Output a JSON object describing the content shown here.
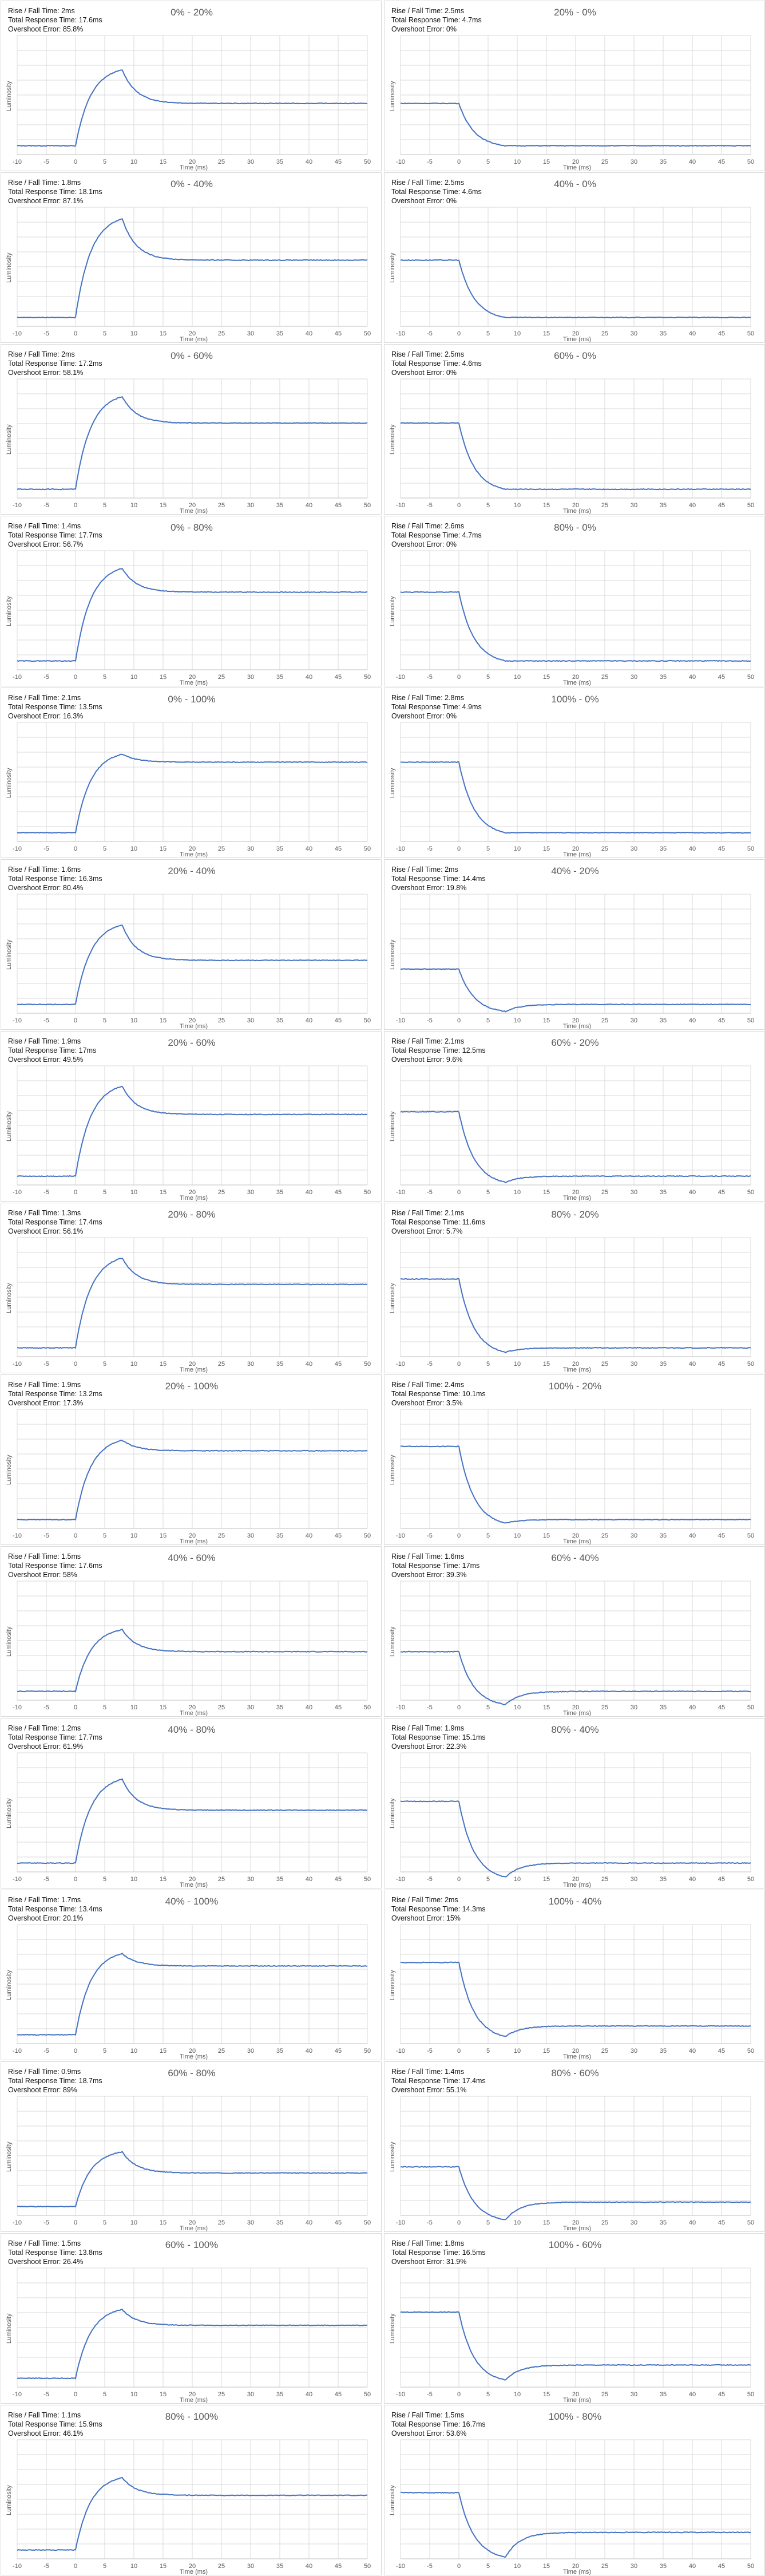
{
  "colors": {
    "line": "#4472c4",
    "grid": "#d9d9d9",
    "axis": "#bfbfbf",
    "text": "#595959"
  },
  "labels": {
    "rise": "Rise / Fall Time: ",
    "total": "Total Response Time: ",
    "overshoot": "Overshoot Error: "
  },
  "chart_data": [
    {
      "type": "line",
      "title": "0% - 20%",
      "start": 0.1,
      "end": 0.58,
      "peak": 0.96,
      "rise": "2ms",
      "total": "17.6ms",
      "overshoot": "85.8%",
      "xlabel": "Time (ms)",
      "ylabel": "Luminosity",
      "xlim": [
        -10,
        50
      ],
      "xticks": [
        -10,
        -5,
        0,
        5,
        10,
        15,
        20,
        25,
        30,
        35,
        40,
        45,
        50
      ]
    },
    {
      "type": "line",
      "title": "20% - 0%",
      "start": 0.58,
      "end": 0.1,
      "peak": 0.1,
      "rise": "2.5ms",
      "total": "4.7ms",
      "overshoot": "0%",
      "xlabel": "Time (ms)",
      "ylabel": "Luminosity",
      "xlim": [
        -10,
        50
      ],
      "xticks": [
        -10,
        -5,
        0,
        5,
        10,
        15,
        20,
        25,
        30,
        35,
        40,
        45,
        50
      ]
    },
    {
      "type": "line",
      "title": "0% - 40%",
      "start": 0.1,
      "end": 0.75,
      "peak": 1.22,
      "rise": "1.8ms",
      "total": "18.1ms",
      "overshoot": "87.1%",
      "xlabel": "Time (ms)",
      "ylabel": "Luminosity",
      "xlim": [
        -10,
        50
      ],
      "xticks": [
        -10,
        -5,
        0,
        5,
        10,
        15,
        20,
        25,
        30,
        35,
        40,
        45,
        50
      ]
    },
    {
      "type": "line",
      "title": "40% - 0%",
      "start": 0.75,
      "end": 0.1,
      "peak": 0.1,
      "rise": "2.5ms",
      "total": "4.6ms",
      "overshoot": "0%",
      "xlabel": "Time (ms)",
      "ylabel": "Luminosity",
      "xlim": [
        -10,
        50
      ],
      "xticks": [
        -10,
        -5,
        0,
        5,
        10,
        15,
        20,
        25,
        30,
        35,
        40,
        45,
        50
      ]
    },
    {
      "type": "line",
      "title": "0% - 60%",
      "start": 0.1,
      "end": 0.85,
      "peak": 1.15,
      "rise": "2ms",
      "total": "17.2ms",
      "overshoot": "58.1%",
      "xlabel": "Time (ms)",
      "ylabel": "Luminosity",
      "xlim": [
        -10,
        50
      ],
      "xticks": [
        -10,
        -5,
        0,
        5,
        10,
        15,
        20,
        25,
        30,
        35,
        40,
        45,
        50
      ]
    },
    {
      "type": "line",
      "title": "60% - 0%",
      "start": 0.85,
      "end": 0.1,
      "peak": 0.1,
      "rise": "2.5ms",
      "total": "4.6ms",
      "overshoot": "0%",
      "xlabel": "Time (ms)",
      "ylabel": "Luminosity",
      "xlim": [
        -10,
        50
      ],
      "xticks": [
        -10,
        -5,
        0,
        5,
        10,
        15,
        20,
        25,
        30,
        35,
        40,
        45,
        50
      ]
    },
    {
      "type": "line",
      "title": "0% - 80%",
      "start": 0.1,
      "end": 0.88,
      "peak": 1.15,
      "rise": "1.4ms",
      "total": "17.7ms",
      "overshoot": "56.7%",
      "xlabel": "Time (ms)",
      "ylabel": "Luminosity",
      "xlim": [
        -10,
        50
      ],
      "xticks": [
        -10,
        -5,
        0,
        5,
        10,
        15,
        20,
        25,
        30,
        35,
        40,
        45,
        50
      ]
    },
    {
      "type": "line",
      "title": "80% - 0%",
      "start": 0.88,
      "end": 0.1,
      "peak": 0.1,
      "rise": "2.6ms",
      "total": "4.7ms",
      "overshoot": "0%",
      "xlabel": "Time (ms)",
      "ylabel": "Luminosity",
      "xlim": [
        -10,
        50
      ],
      "xticks": [
        -10,
        -5,
        0,
        5,
        10,
        15,
        20,
        25,
        30,
        35,
        40,
        45,
        50
      ]
    },
    {
      "type": "line",
      "title": "0% - 100%",
      "start": 0.1,
      "end": 0.9,
      "peak": 0.99,
      "rise": "2.1ms",
      "total": "13.5ms",
      "overshoot": "16.3%",
      "xlabel": "Time (ms)",
      "ylabel": "Luminosity",
      "xlim": [
        -10,
        50
      ],
      "xticks": [
        -10,
        -5,
        0,
        5,
        10,
        15,
        20,
        25,
        30,
        35,
        40,
        45,
        50
      ]
    },
    {
      "type": "line",
      "title": "100% - 0%",
      "start": 0.9,
      "end": 0.1,
      "peak": 0.1,
      "rise": "2.8ms",
      "total": "4.9ms",
      "overshoot": "0%",
      "xlabel": "Time (ms)",
      "ylabel": "Luminosity",
      "xlim": [
        -10,
        50
      ],
      "xticks": [
        -10,
        -5,
        0,
        5,
        10,
        15,
        20,
        25,
        30,
        35,
        40,
        45,
        50
      ]
    },
    {
      "type": "line",
      "title": "20% - 40%",
      "start": 0.1,
      "end": 0.6,
      "peak": 1.0,
      "rise": "1.6ms",
      "total": "16.3ms",
      "overshoot": "80.4%",
      "xlabel": "Time (ms)",
      "ylabel": "Luminosity",
      "xlim": [
        -10,
        50
      ],
      "xticks": [
        -10,
        -5,
        0,
        5,
        10,
        15,
        20,
        25,
        30,
        35,
        40,
        45,
        50
      ]
    },
    {
      "type": "line",
      "title": "40% - 20%",
      "start": 0.5,
      "end": 0.1,
      "peak": 0.02,
      "rise": "2ms",
      "total": "14.4ms",
      "overshoot": "19.8%",
      "xlabel": "Time (ms)",
      "ylabel": "Luminosity",
      "xlim": [
        -10,
        50
      ],
      "xticks": [
        -10,
        -5,
        0,
        5,
        10,
        15,
        20,
        25,
        30,
        35,
        40,
        45,
        50
      ]
    },
    {
      "type": "line",
      "title": "20% - 60%",
      "start": 0.1,
      "end": 0.8,
      "peak": 1.12,
      "rise": "1.9ms",
      "total": "17ms",
      "overshoot": "49.5%",
      "xlabel": "Time (ms)",
      "ylabel": "Luminosity",
      "xlim": [
        -10,
        50
      ],
      "xticks": [
        -10,
        -5,
        0,
        5,
        10,
        15,
        20,
        25,
        30,
        35,
        40,
        45,
        50
      ]
    },
    {
      "type": "line",
      "title": "60% - 20%",
      "start": 0.83,
      "end": 0.1,
      "peak": 0.03,
      "rise": "2.1ms",
      "total": "12.5ms",
      "overshoot": "9.6%",
      "xlabel": "Time (ms)",
      "ylabel": "Luminosity",
      "xlim": [
        -10,
        50
      ],
      "xticks": [
        -10,
        -5,
        0,
        5,
        10,
        15,
        20,
        25,
        30,
        35,
        40,
        45,
        50
      ]
    },
    {
      "type": "line",
      "title": "20% - 80%",
      "start": 0.1,
      "end": 0.82,
      "peak": 1.12,
      "rise": "1.3ms",
      "total": "17.4ms",
      "overshoot": "56.1%",
      "xlabel": "Time (ms)",
      "ylabel": "Luminosity",
      "xlim": [
        -10,
        50
      ],
      "xticks": [
        -10,
        -5,
        0,
        5,
        10,
        15,
        20,
        25,
        30,
        35,
        40,
        45,
        50
      ]
    },
    {
      "type": "line",
      "title": "80% - 20%",
      "start": 0.88,
      "end": 0.1,
      "peak": 0.05,
      "rise": "2.1ms",
      "total": "11.6ms",
      "overshoot": "5.7%",
      "xlabel": "Time (ms)",
      "ylabel": "Luminosity",
      "xlim": [
        -10,
        50
      ],
      "xticks": [
        -10,
        -5,
        0,
        5,
        10,
        15,
        20,
        25,
        30,
        35,
        40,
        45,
        50
      ]
    },
    {
      "type": "line",
      "title": "20% - 100%",
      "start": 0.1,
      "end": 0.88,
      "peak": 1.0,
      "rise": "1.9ms",
      "total": "13.2ms",
      "overshoot": "17.3%",
      "xlabel": "Time (ms)",
      "ylabel": "Luminosity",
      "xlim": [
        -10,
        50
      ],
      "xticks": [
        -10,
        -5,
        0,
        5,
        10,
        15,
        20,
        25,
        30,
        35,
        40,
        45,
        50
      ]
    },
    {
      "type": "line",
      "title": "100% - 20%",
      "start": 0.93,
      "end": 0.1,
      "peak": 0.06,
      "rise": "2.4ms",
      "total": "10.1ms",
      "overshoot": "3.5%",
      "xlabel": "Time (ms)",
      "ylabel": "Luminosity",
      "xlim": [
        -10,
        50
      ],
      "xticks": [
        -10,
        -5,
        0,
        5,
        10,
        15,
        20,
        25,
        30,
        35,
        40,
        45,
        50
      ]
    },
    {
      "type": "line",
      "title": "40% - 60%",
      "start": 0.1,
      "end": 0.55,
      "peak": 0.8,
      "rise": "1.5ms",
      "total": "17.6ms",
      "overshoot": "58%",
      "xlabel": "Time (ms)",
      "ylabel": "Luminosity",
      "xlim": [
        -10,
        50
      ],
      "xticks": [
        -10,
        -5,
        0,
        5,
        10,
        15,
        20,
        25,
        30,
        35,
        40,
        45,
        50
      ]
    },
    {
      "type": "line",
      "title": "60% - 40%",
      "start": 0.55,
      "end": 0.1,
      "peak": -0.05,
      "rise": "1.6ms",
      "total": "17ms",
      "overshoot": "39.3%",
      "xlabel": "Time (ms)",
      "ylabel": "Luminosity",
      "xlim": [
        -10,
        50
      ],
      "xticks": [
        -10,
        -5,
        0,
        5,
        10,
        15,
        20,
        25,
        30,
        35,
        40,
        45,
        50
      ]
    },
    {
      "type": "line",
      "title": "40% - 80%",
      "start": 0.1,
      "end": 0.7,
      "peak": 1.05,
      "rise": "1.2ms",
      "total": "17.7ms",
      "overshoot": "61.9%",
      "xlabel": "Time (ms)",
      "ylabel": "Luminosity",
      "xlim": [
        -10,
        50
      ],
      "xticks": [
        -10,
        -5,
        0,
        5,
        10,
        15,
        20,
        25,
        30,
        35,
        40,
        45,
        50
      ]
    },
    {
      "type": "line",
      "title": "80% - 40%",
      "start": 0.8,
      "end": 0.1,
      "peak": -0.06,
      "rise": "1.9ms",
      "total": "15.1ms",
      "overshoot": "22.3%",
      "xlabel": "Time (ms)",
      "ylabel": "Luminosity",
      "xlim": [
        -10,
        50
      ],
      "xticks": [
        -10,
        -5,
        0,
        5,
        10,
        15,
        20,
        25,
        30,
        35,
        40,
        45,
        50
      ]
    },
    {
      "type": "line",
      "title": "40% - 100%",
      "start": 0.1,
      "end": 0.88,
      "peak": 1.02,
      "rise": "1.7ms",
      "total": "13.4ms",
      "overshoot": "20.1%",
      "xlabel": "Time (ms)",
      "ylabel": "Luminosity",
      "xlim": [
        -10,
        50
      ],
      "xticks": [
        -10,
        -5,
        0,
        5,
        10,
        15,
        20,
        25,
        30,
        35,
        40,
        45,
        50
      ]
    },
    {
      "type": "line",
      "title": "100% - 40%",
      "start": 0.92,
      "end": 0.2,
      "peak": 0.08,
      "rise": "2ms",
      "total": "14.3ms",
      "overshoot": "15%",
      "xlabel": "Time (ms)",
      "ylabel": "Luminosity",
      "xlim": [
        -10,
        50
      ],
      "xticks": [
        -10,
        -5,
        0,
        5,
        10,
        15,
        20,
        25,
        30,
        35,
        40,
        45,
        50
      ]
    },
    {
      "type": "line",
      "title": "60% - 80%",
      "start": 0.1,
      "end": 0.48,
      "peak": 0.72,
      "rise": "0.9ms",
      "total": "18.7ms",
      "overshoot": "89%",
      "xlabel": "Time (ms)",
      "ylabel": "Luminosity",
      "xlim": [
        -10,
        50
      ],
      "xticks": [
        -10,
        -5,
        0,
        5,
        10,
        15,
        20,
        25,
        30,
        35,
        40,
        45,
        50
      ]
    },
    {
      "type": "line",
      "title": "80% - 60%",
      "start": 0.55,
      "end": 0.15,
      "peak": -0.05,
      "rise": "1.4ms",
      "total": "17.4ms",
      "overshoot": "55.1%",
      "xlabel": "Time (ms)",
      "ylabel": "Luminosity",
      "xlim": [
        -10,
        50
      ],
      "xticks": [
        -10,
        -5,
        0,
        5,
        10,
        15,
        20,
        25,
        30,
        35,
        40,
        45,
        50
      ]
    },
    {
      "type": "line",
      "title": "60% - 100%",
      "start": 0.1,
      "end": 0.7,
      "peak": 0.88,
      "rise": "1.5ms",
      "total": "13.8ms",
      "overshoot": "26.4%",
      "xlabel": "Time (ms)",
      "ylabel": "Luminosity",
      "xlim": [
        -10,
        50
      ],
      "xticks": [
        -10,
        -5,
        0,
        5,
        10,
        15,
        20,
        25,
        30,
        35,
        40,
        45,
        50
      ]
    },
    {
      "type": "line",
      "title": "100% - 60%",
      "start": 0.85,
      "end": 0.25,
      "peak": 0.08,
      "rise": "1.8ms",
      "total": "16.5ms",
      "overshoot": "31.9%",
      "xlabel": "Time (ms)",
      "ylabel": "Luminosity",
      "xlim": [
        -10,
        50
      ],
      "xticks": [
        -10,
        -5,
        0,
        5,
        10,
        15,
        20,
        25,
        30,
        35,
        40,
        45,
        50
      ]
    },
    {
      "type": "line",
      "title": "80% - 100%",
      "start": 0.1,
      "end": 0.72,
      "peak": 0.92,
      "rise": "1.1ms",
      "total": "15.9ms",
      "overshoot": "46.1%",
      "xlabel": "Time (ms)",
      "ylabel": "Luminosity",
      "xlim": [
        -10,
        50
      ],
      "xticks": [
        -10,
        -5,
        0,
        5,
        10,
        15,
        20,
        25,
        30,
        35,
        40,
        45,
        50
      ]
    },
    {
      "type": "line",
      "title": "100% - 80%",
      "start": 0.75,
      "end": 0.3,
      "peak": 0.02,
      "rise": "1.5ms",
      "total": "16.7ms",
      "overshoot": "53.6%",
      "xlabel": "Time (ms)",
      "ylabel": "Luminosity",
      "xlim": [
        -10,
        50
      ],
      "xticks": [
        -10,
        -5,
        0,
        5,
        10,
        15,
        20,
        25,
        30,
        35,
        40,
        45,
        50
      ]
    }
  ]
}
